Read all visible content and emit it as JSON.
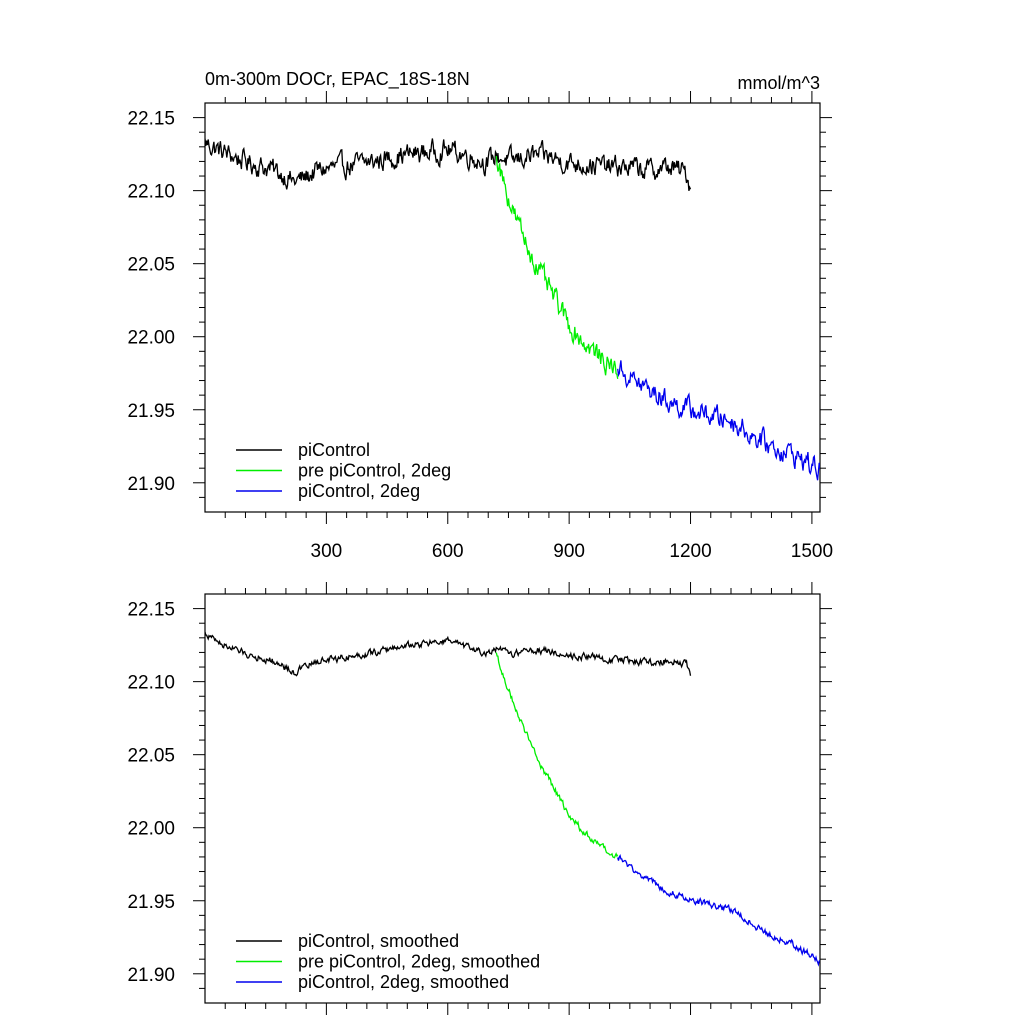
{
  "chart_data": [
    {
      "type": "line",
      "title": "0m-300m DOCr, EPAC_18S-18N",
      "units": "mmol/m^3",
      "xlabel": "",
      "ylabel": "",
      "xlim": [
        0,
        1520
      ],
      "ylim": [
        21.88,
        22.16
      ],
      "xticks": [
        300,
        600,
        900,
        1200,
        1500
      ],
      "xtick_labels": [
        "300",
        "600",
        "900",
        "1200",
        "1500"
      ],
      "yticks": [
        21.9,
        21.95,
        22.0,
        22.05,
        22.1,
        22.15
      ],
      "ytick_labels": [
        "21.90",
        "21.95",
        "22.00",
        "22.05",
        "22.10",
        "22.15"
      ],
      "legend_position": "bottom-left",
      "noise": 0.006,
      "series": [
        {
          "name": "piControl",
          "color": "#000000",
          "x": [
            0,
            40,
            100,
            160,
            200,
            220,
            240,
            280,
            350,
            420,
            480,
            540,
            600,
            650,
            700,
            720,
            760,
            800,
            850,
            900,
            950,
            1000,
            1050,
            1100,
            1150,
            1190,
            1200
          ],
          "y": [
            22.133,
            22.127,
            22.12,
            22.115,
            22.11,
            22.106,
            22.108,
            22.114,
            22.117,
            22.12,
            22.124,
            22.126,
            22.128,
            22.124,
            22.119,
            22.124,
            22.12,
            22.124,
            22.123,
            22.119,
            22.118,
            22.116,
            22.116,
            22.114,
            22.116,
            22.112,
            22.102
          ]
        },
        {
          "name": "pre piControl, 2deg",
          "color": "#00ee00",
          "x": [
            720,
            740,
            760,
            780,
            800,
            830,
            860,
            900,
            940,
            980,
            1020
          ],
          "y": [
            22.124,
            22.105,
            22.087,
            22.073,
            22.06,
            22.043,
            22.028,
            22.008,
            21.995,
            21.985,
            21.977
          ]
        },
        {
          "name": "piControl, 2deg",
          "color": "#0000ee",
          "x": [
            1020,
            1060,
            1100,
            1150,
            1200,
            1250,
            1300,
            1350,
            1400,
            1450,
            1500,
            1520
          ],
          "y": [
            21.978,
            21.97,
            21.963,
            21.955,
            21.95,
            21.946,
            21.943,
            21.933,
            21.925,
            21.92,
            21.912,
            21.908
          ]
        }
      ]
    },
    {
      "type": "line",
      "title": "",
      "units": "",
      "xlabel": "",
      "ylabel": "",
      "xlim": [
        0,
        1520
      ],
      "ylim": [
        21.88,
        22.16
      ],
      "xticks": [
        300,
        600,
        900,
        1200,
        1500
      ],
      "xtick_labels": [],
      "yticks": [
        21.9,
        21.95,
        22.0,
        22.05,
        22.1,
        22.15
      ],
      "ytick_labels": [
        "21.90",
        "21.95",
        "22.00",
        "22.05",
        "22.10",
        "22.15"
      ],
      "legend_position": "bottom-left",
      "noise": 0.002,
      "series": [
        {
          "name": "piControl, smoothed",
          "color": "#000000",
          "x": [
            0,
            40,
            100,
            160,
            200,
            220,
            240,
            280,
            350,
            420,
            480,
            540,
            600,
            650,
            700,
            720,
            760,
            800,
            850,
            900,
            950,
            1000,
            1050,
            1100,
            1150,
            1190,
            1200
          ],
          "y": [
            22.133,
            22.126,
            22.119,
            22.115,
            22.11,
            22.106,
            22.109,
            22.114,
            22.117,
            22.12,
            22.124,
            22.126,
            22.128,
            22.123,
            22.119,
            22.122,
            22.119,
            22.122,
            22.121,
            22.118,
            22.117,
            22.115,
            22.115,
            22.113,
            22.115,
            22.112,
            22.103
          ]
        },
        {
          "name": "pre piControl, 2deg, smoothed",
          "color": "#00ee00",
          "x": [
            720,
            740,
            760,
            780,
            800,
            830,
            860,
            900,
            940,
            980,
            1020
          ],
          "y": [
            22.12,
            22.102,
            22.087,
            22.073,
            22.06,
            22.043,
            22.028,
            22.008,
            21.996,
            21.986,
            21.979
          ]
        },
        {
          "name": "piControl, 2deg, smoothed",
          "color": "#0000ee",
          "x": [
            1020,
            1060,
            1100,
            1150,
            1200,
            1250,
            1300,
            1350,
            1400,
            1450,
            1500,
            1520
          ],
          "y": [
            21.98,
            21.971,
            21.964,
            21.956,
            21.951,
            21.947,
            21.944,
            21.935,
            21.926,
            21.921,
            21.912,
            21.908
          ]
        }
      ]
    }
  ]
}
